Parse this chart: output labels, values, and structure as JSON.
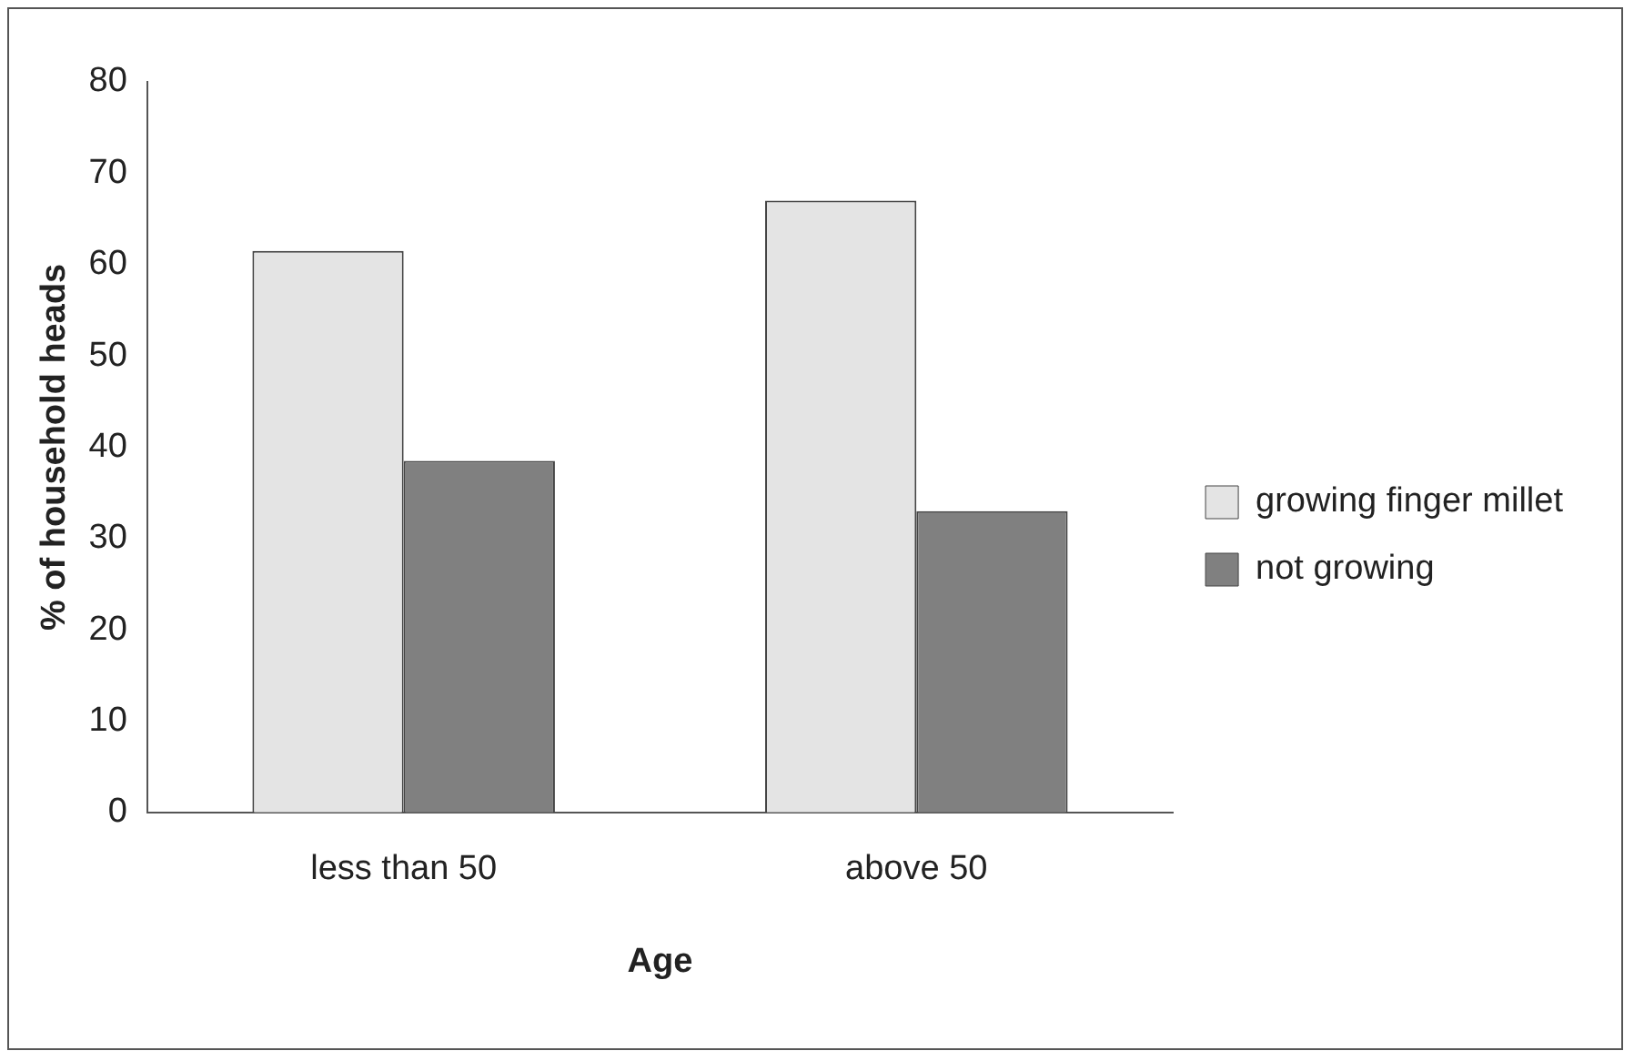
{
  "chart_data": {
    "type": "bar",
    "xlabel": "Age",
    "ylabel": "% of household heads",
    "categories": [
      "less than 50",
      "above 50"
    ],
    "series": [
      {
        "name": "growing finger millet",
        "color": "#e4e4e4",
        "values": [
          61.5,
          67
        ]
      },
      {
        "name": "not growing",
        "color": "#808080",
        "values": [
          38.5,
          33
        ]
      }
    ],
    "ylim": [
      0,
      80
    ],
    "yticks": [
      0,
      10,
      20,
      30,
      40,
      50,
      60,
      70,
      80
    ],
    "grid": false,
    "legend": "right"
  }
}
